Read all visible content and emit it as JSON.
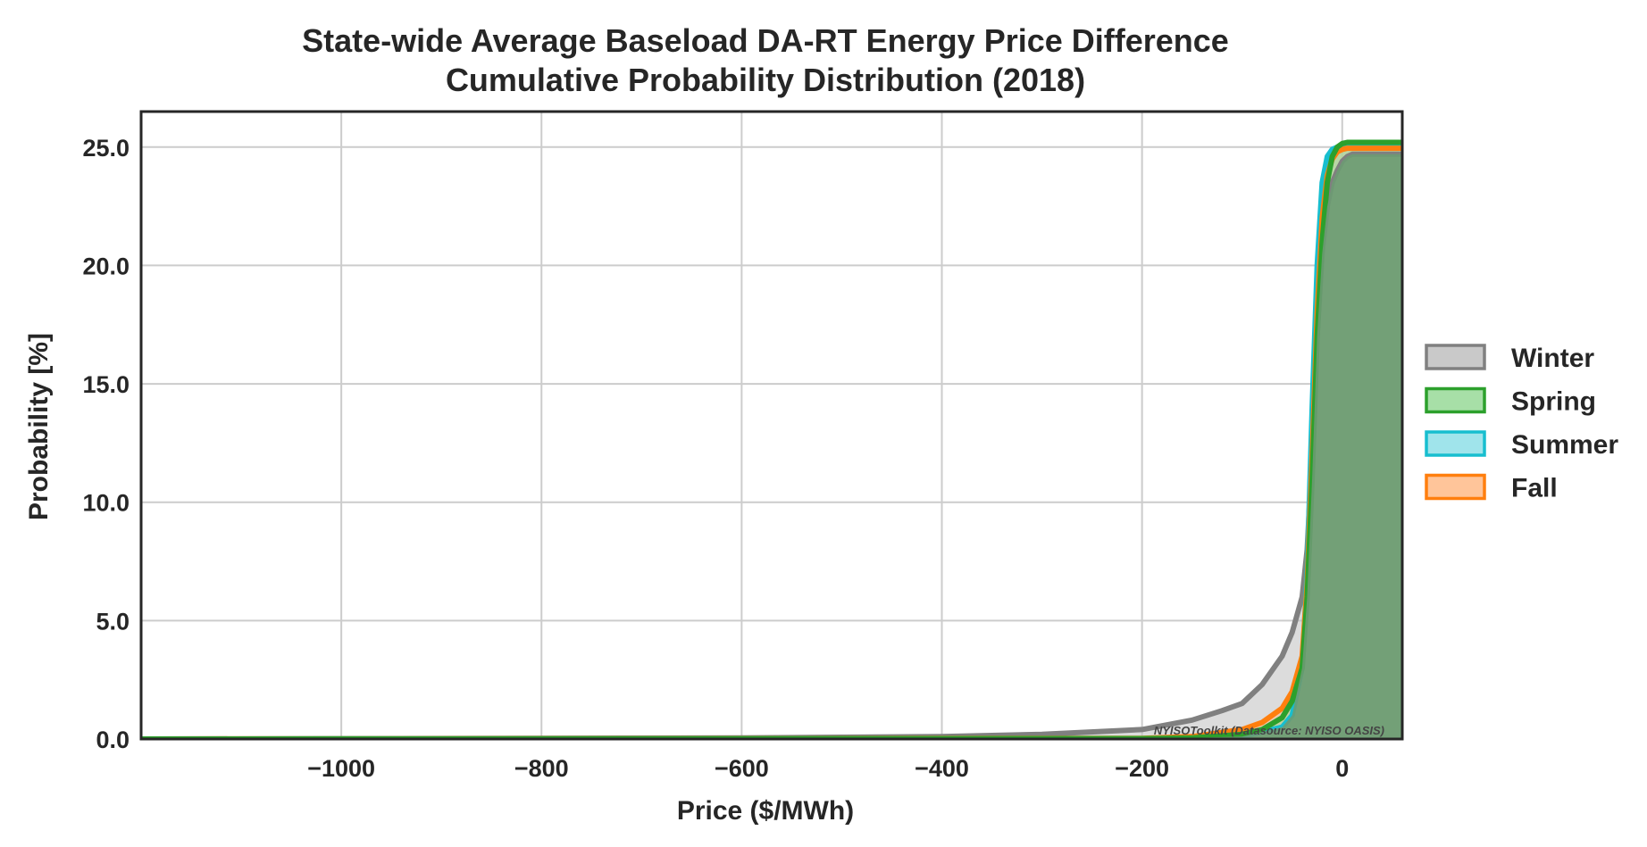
{
  "chart_data": {
    "type": "area",
    "title": "State-wide Average Baseload DA-RT Energy Price Difference",
    "subtitle": "Cumulative Probability Distribution (2018)",
    "xlabel": "Price ($/MWh)",
    "ylabel": "Probability [%]",
    "xlim": [
      -1200,
      60
    ],
    "ylim": [
      0,
      26.5
    ],
    "xticks": [
      -1000,
      -800,
      -600,
      -400,
      -200,
      0
    ],
    "xtick_labels": [
      "−1000",
      "−800",
      "−600",
      "−400",
      "−200",
      "0"
    ],
    "yticks": [
      0,
      5,
      10,
      15,
      20,
      25
    ],
    "ytick_labels": [
      "0.0",
      "5.0",
      "10.0",
      "15.0",
      "20.0",
      "25.0"
    ],
    "grid": true,
    "legend_position": "right",
    "annotation": "NYISOToolkit (Datasource: NYISO OASIS)",
    "series": [
      {
        "name": "Winter",
        "color": "#808080",
        "fill": "#bfbfbf",
        "x": [
          -1200,
          -600,
          -400,
          -300,
          -200,
          -150,
          -120,
          -100,
          -80,
          -60,
          -50,
          -40,
          -35,
          -30,
          -25,
          -20,
          -15,
          -10,
          -5,
          0,
          5,
          10,
          60
        ],
        "y": [
          0.0,
          0.05,
          0.1,
          0.2,
          0.4,
          0.8,
          1.2,
          1.5,
          2.3,
          3.5,
          4.5,
          6.0,
          8.0,
          12.0,
          17.0,
          20.5,
          22.5,
          23.5,
          24.0,
          24.4,
          24.6,
          24.7,
          24.7
        ]
      },
      {
        "name": "Spring",
        "color": "#2ca02c",
        "fill": "#98d998",
        "x": [
          -1200,
          -200,
          -150,
          -100,
          -80,
          -60,
          -50,
          -40,
          -35,
          -30,
          -25,
          -20,
          -15,
          -10,
          -5,
          0,
          5,
          10,
          60
        ],
        "y": [
          0.0,
          0.02,
          0.05,
          0.2,
          0.4,
          0.9,
          1.6,
          3.0,
          6.0,
          11.0,
          17.0,
          21.0,
          23.5,
          24.6,
          25.0,
          25.15,
          25.2,
          25.2,
          25.2
        ]
      },
      {
        "name": "Summer",
        "color": "#17becf",
        "fill": "#8fdfe8",
        "x": [
          -1200,
          -200,
          -100,
          -60,
          -50,
          -40,
          -35,
          -30,
          -25,
          -20,
          -15,
          -10,
          -5,
          0,
          60
        ],
        "y": [
          0.0,
          0.02,
          0.1,
          0.5,
          1.0,
          3.0,
          7.0,
          14.0,
          20.0,
          23.5,
          24.6,
          24.9,
          25.0,
          25.05,
          25.05
        ]
      },
      {
        "name": "Fall",
        "color": "#ff7f0e",
        "fill": "#ffbb88",
        "x": [
          -1200,
          -200,
          -150,
          -100,
          -80,
          -60,
          -50,
          -40,
          -35,
          -30,
          -25,
          -20,
          -15,
          -10,
          -5,
          0,
          5,
          60
        ],
        "y": [
          0.0,
          0.03,
          0.1,
          0.4,
          0.7,
          1.3,
          2.0,
          3.5,
          6.5,
          12.0,
          18.0,
          22.0,
          23.8,
          24.5,
          24.8,
          24.9,
          24.95,
          24.95
        ]
      }
    ],
    "overlap_fill": "#6b9a72"
  }
}
